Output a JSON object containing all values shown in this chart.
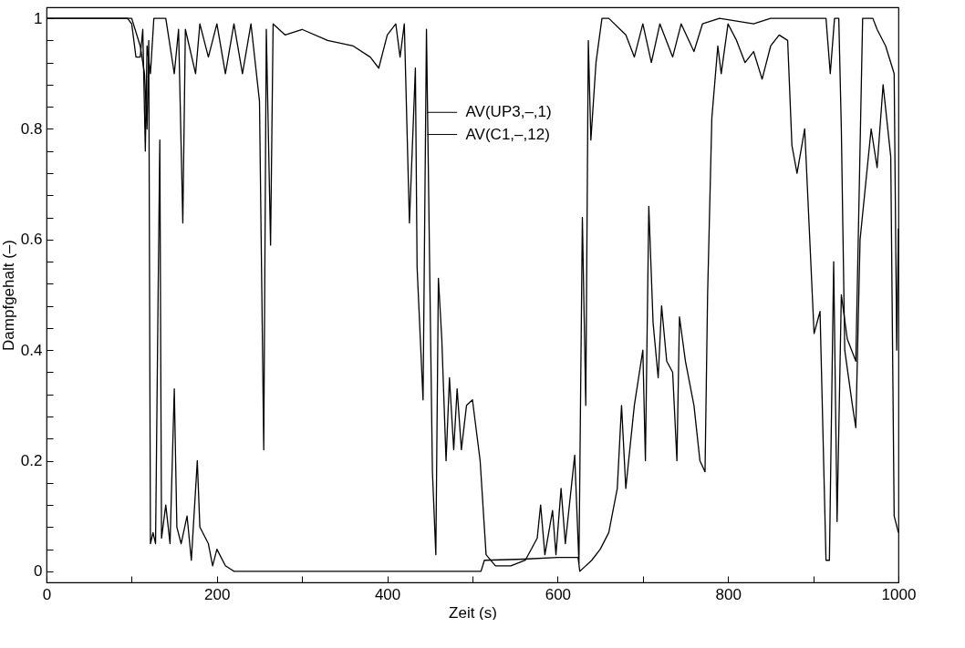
{
  "chart_data": {
    "type": "line",
    "xlabel": "Zeit (s)",
    "ylabel": "Dampfgehalt (–)",
    "xlim": [
      0,
      1000
    ],
    "ylim": [
      -0.02,
      1.02
    ],
    "xticks": [
      0,
      {
        "value": 100,
        "label": null
      },
      200,
      {
        "value": 300,
        "label": null
      },
      400,
      {
        "value": 500,
        "label": null
      },
      600,
      {
        "value": 700,
        "label": null
      },
      800,
      {
        "value": 900,
        "label": null
      },
      1000
    ],
    "yticks": [
      0,
      {
        "value": 0.04,
        "label": null
      },
      {
        "value": 0.08,
        "label": null
      },
      {
        "value": 0.12,
        "label": null
      },
      {
        "value": 0.16,
        "label": null
      },
      0.2,
      {
        "value": 0.24,
        "label": null
      },
      {
        "value": 0.28,
        "label": null
      },
      {
        "value": 0.32,
        "label": null
      },
      {
        "value": 0.36,
        "label": null
      },
      0.4,
      {
        "value": 0.44,
        "label": null
      },
      {
        "value": 0.48,
        "label": null
      },
      {
        "value": 0.52,
        "label": null
      },
      {
        "value": 0.56,
        "label": null
      },
      0.6,
      {
        "value": 0.64,
        "label": null
      },
      {
        "value": 0.68,
        "label": null
      },
      {
        "value": 0.72,
        "label": null
      },
      {
        "value": 0.76,
        "label": null
      },
      0.8,
      {
        "value": 0.84,
        "label": null
      },
      {
        "value": 0.88,
        "label": null
      },
      {
        "value": 0.92,
        "label": null
      },
      {
        "value": 0.96,
        "label": null
      },
      1
    ],
    "grid": false,
    "legend": "top",
    "marker": "none",
    "line_style": "solid",
    "series": [
      {
        "name": "AV(UP3,–,1)",
        "color": "#000000",
        "x": [
          0,
          95,
          100,
          105,
          110,
          113,
          116,
          118,
          122,
          126,
          140,
          150,
          155,
          160,
          163,
          175,
          180,
          190,
          200,
          210,
          220,
          230,
          240,
          250,
          255,
          258,
          263,
          266,
          280,
          300,
          330,
          360,
          380,
          390,
          400,
          410,
          415,
          420,
          426,
          433,
          435,
          442,
          446,
          453,
          457,
          460,
          464,
          469,
          473,
          478,
          482,
          487,
          493,
          500,
          509,
          516,
          527,
          545,
          562,
          576,
          580,
          585,
          594,
          598,
          604,
          609,
          620,
          625,
          629,
          633,
          636,
          639,
          645,
          652,
          660,
          680,
          690,
          700,
          710,
          720,
          735,
          745,
          760,
          770,
          790,
          830,
          850,
          900,
          915,
          920,
          925,
          930,
          933,
          937,
          946,
          950,
          955,
          968,
          975,
          982,
          991,
          995,
          1000
        ],
        "values": [
          1,
          1,
          0.99,
          0.93,
          0.93,
          0.98,
          0.76,
          0.95,
          0.9,
          1,
          1,
          0.9,
          0.98,
          0.63,
          0.98,
          0.9,
          0.99,
          0.93,
          0.99,
          0.9,
          0.99,
          0.9,
          0.99,
          0.85,
          0.22,
          0.98,
          0.59,
          0.99,
          0.97,
          0.98,
          0.96,
          0.95,
          0.93,
          0.91,
          0.97,
          0.99,
          0.93,
          0.99,
          0.63,
          0.91,
          0.55,
          0.31,
          0.98,
          0.18,
          0.03,
          0.53,
          0.42,
          0.2,
          0.35,
          0.22,
          0.33,
          0.22,
          0.3,
          0.31,
          0.2,
          0.03,
          0.01,
          0.01,
          0.02,
          0.06,
          0.12,
          0.03,
          0.11,
          0.03,
          0.15,
          0.05,
          0.21,
          0.015,
          0.64,
          0.3,
          0.96,
          0.78,
          0.92,
          1,
          1,
          0.97,
          0.93,
          0.99,
          0.92,
          0.99,
          0.93,
          0.99,
          0.94,
          0.99,
          1,
          0.99,
          1,
          1,
          1,
          0.9,
          1,
          1,
          0.8,
          0.4,
          0.3,
          0.26,
          0.6,
          0.8,
          0.73,
          0.88,
          0.75,
          0.1,
          0.07
        ]
      },
      {
        "name": "AV(C1,–,12)",
        "color": "#000000",
        "x": [
          0,
          100,
          110,
          115,
          118,
          120,
          122,
          125,
          128,
          131,
          133,
          135,
          140,
          145,
          150,
          153,
          158,
          165,
          170,
          177,
          180,
          190,
          195,
          200,
          210,
          220,
          510,
          514,
          560,
          600,
          624,
          626,
          640,
          650,
          660,
          670,
          675,
          680,
          690,
          700,
          703,
          707,
          712,
          718,
          722,
          728,
          735,
          740,
          743,
          750,
          760,
          767,
          773,
          776,
          781,
          788,
          792,
          800,
          810,
          820,
          830,
          840,
          850,
          860,
          870,
          875,
          881,
          890,
          901,
          908,
          915,
          919,
          924,
          928,
          933,
          940,
          950,
          958,
          970,
          975,
          985,
          995,
          998,
          1000
        ],
        "values": [
          1,
          1,
          0.95,
          0.9,
          0.8,
          0.96,
          0.05,
          0.07,
          0.05,
          0.5,
          0.78,
          0.06,
          0.12,
          0.05,
          0.33,
          0.08,
          0.05,
          0.1,
          0.02,
          0.2,
          0.08,
          0.05,
          0.01,
          0.04,
          0.01,
          0,
          0,
          0.02,
          0.022,
          0.025,
          0.025,
          0,
          0.02,
          0.04,
          0.07,
          0.15,
          0.3,
          0.15,
          0.3,
          0.4,
          0.2,
          0.66,
          0.45,
          0.35,
          0.48,
          0.38,
          0.36,
          0.2,
          0.46,
          0.38,
          0.3,
          0.2,
          0.18,
          0.5,
          0.82,
          0.95,
          0.9,
          0.99,
          0.96,
          0.92,
          0.94,
          0.89,
          0.95,
          0.97,
          0.96,
          0.77,
          0.72,
          0.8,
          0.43,
          0.47,
          0.02,
          0.02,
          0.56,
          0.09,
          0.5,
          0.42,
          0.38,
          1,
          1,
          0.98,
          0.95,
          0.9,
          0.4,
          0.62
        ]
      }
    ]
  }
}
